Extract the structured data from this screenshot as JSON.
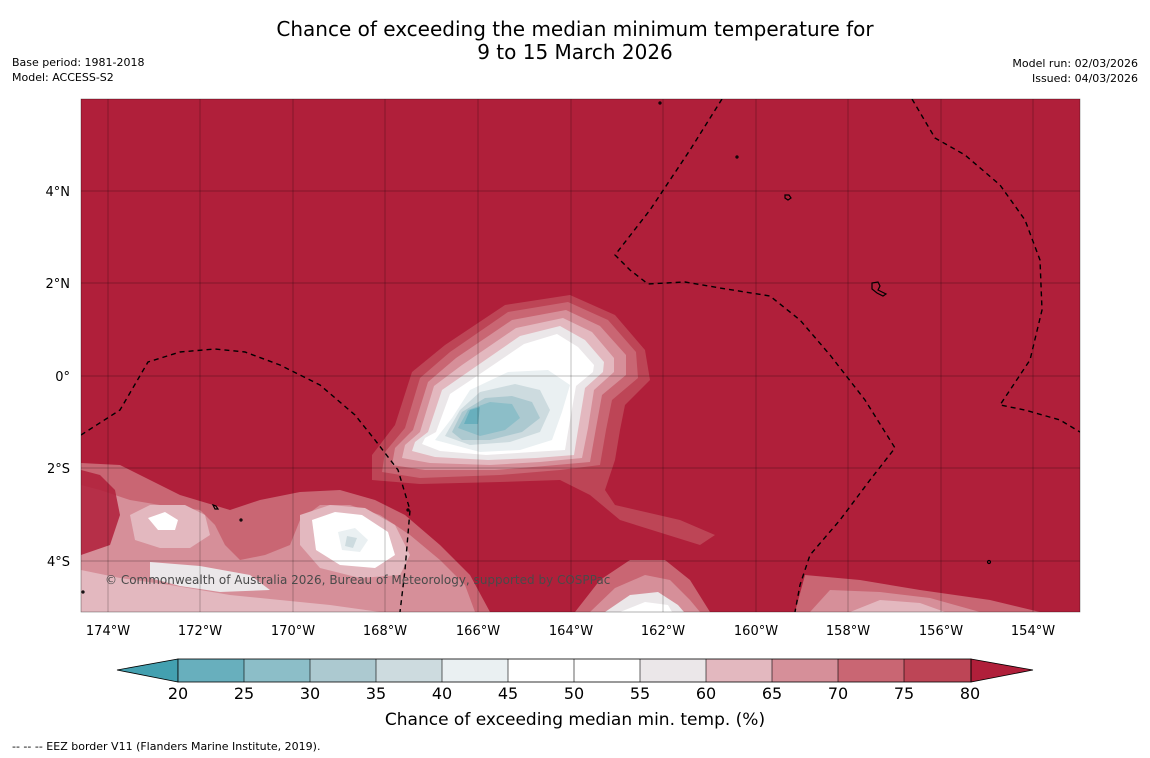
{
  "title": {
    "line1": "Chance of exceeding the median minimum temperature for",
    "line2": "9 to 15 March 2026"
  },
  "meta": {
    "base_period": "Base period: 1981-2018",
    "model": "Model: ACCESS-S2",
    "model_run": "Model run: 02/03/2026",
    "issued": "Issued: 04/03/2026"
  },
  "map": {
    "lat_labels": [
      "4°N",
      "2°N",
      "0°",
      "2°S",
      "4°S"
    ],
    "lon_labels": [
      "174°W",
      "172°W",
      "170°W",
      "168°W",
      "166°W",
      "164°W",
      "162°W",
      "160°W",
      "158°W",
      "156°W",
      "154°W"
    ],
    "copyright": "© Commonwealth of Australia 2026, Bureau of Meteorology, supported by COSPPac",
    "background_color": "#b01f3a"
  },
  "colorbar": {
    "ticks": [
      "20",
      "25",
      "30",
      "35",
      "40",
      "45",
      "50",
      "55",
      "60",
      "65",
      "70",
      "75",
      "80"
    ],
    "colors": [
      "#43a0b0",
      "#68afbd",
      "#8cbec8",
      "#acc9d0",
      "#cddbdf",
      "#eaf0f2",
      "#ffffff",
      "#ffffff",
      "#ebe7e9",
      "#e3b8bf",
      "#d68f99",
      "#c96673",
      "#bd4556",
      "#b01f3a"
    ],
    "label": "Chance of exceeding median min. temp. (%)"
  },
  "footnote": "--  --  -- EEZ border V11 (Flanders Marine Institute, 2019)."
}
